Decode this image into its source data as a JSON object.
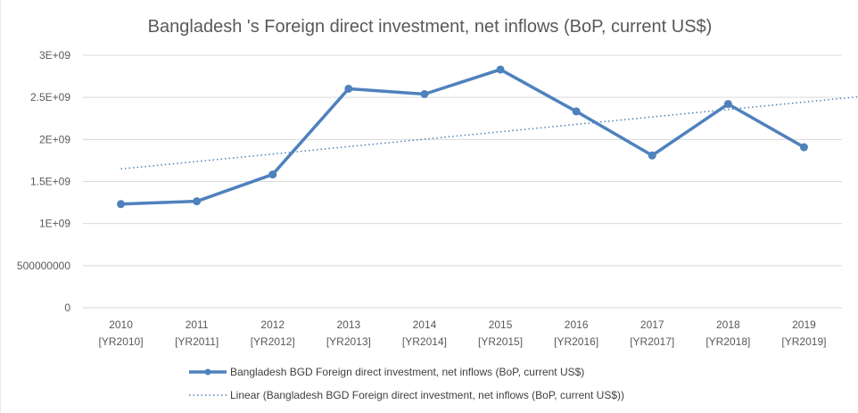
{
  "chart_data": {
    "type": "line",
    "title": "Bangladesh 's Foreign direct investment, net inflows (BoP, current US$)",
    "xlabel": "",
    "ylabel": "",
    "categories": [
      {
        "year": "2010",
        "code": "[YR2010]"
      },
      {
        "year": "2011",
        "code": "[YR2011]"
      },
      {
        "year": "2012",
        "code": "[YR2012]"
      },
      {
        "year": "2013",
        "code": "[YR2013]"
      },
      {
        "year": "2014",
        "code": "[YR2014]"
      },
      {
        "year": "2015",
        "code": "[YR2015]"
      },
      {
        "year": "2016",
        "code": "[YR2016]"
      },
      {
        "year": "2017",
        "code": "[YR2017]"
      },
      {
        "year": "2018",
        "code": "[YR2018]"
      },
      {
        "year": "2019",
        "code": "[YR2019]"
      }
    ],
    "series": [
      {
        "name": "Bangladesh BGD Foreign direct investment, net inflows (BoP, current US$)",
        "color": "#4f81bd",
        "values": [
          1232000000,
          1265000000,
          1584000000,
          2603000000,
          2539000000,
          2831000000,
          2333000000,
          1810000000,
          2421000000,
          1908000000
        ]
      }
    ],
    "trendline": {
      "name": "Linear (Bangladesh BGD Foreign direct investment, net inflows (BoP, current US$))",
      "type": "linear",
      "color": "#4f81bd",
      "start": 1650000000,
      "end": 2550000000,
      "extends_beyond_last_category": 1.2
    },
    "ylim": [
      0,
      3000000000
    ],
    "yticks": [
      {
        "value": 0,
        "label": "0"
      },
      {
        "value": 500000000,
        "label": "500000000"
      },
      {
        "value": 1000000000,
        "label": "1E+09"
      },
      {
        "value": 1500000000,
        "label": "1.5E+09"
      },
      {
        "value": 2000000000,
        "label": "2E+09"
      },
      {
        "value": 2500000000,
        "label": "2.5E+09"
      },
      {
        "value": 3000000000,
        "label": "3E+09"
      }
    ],
    "grid": true,
    "legend_position": "bottom"
  }
}
